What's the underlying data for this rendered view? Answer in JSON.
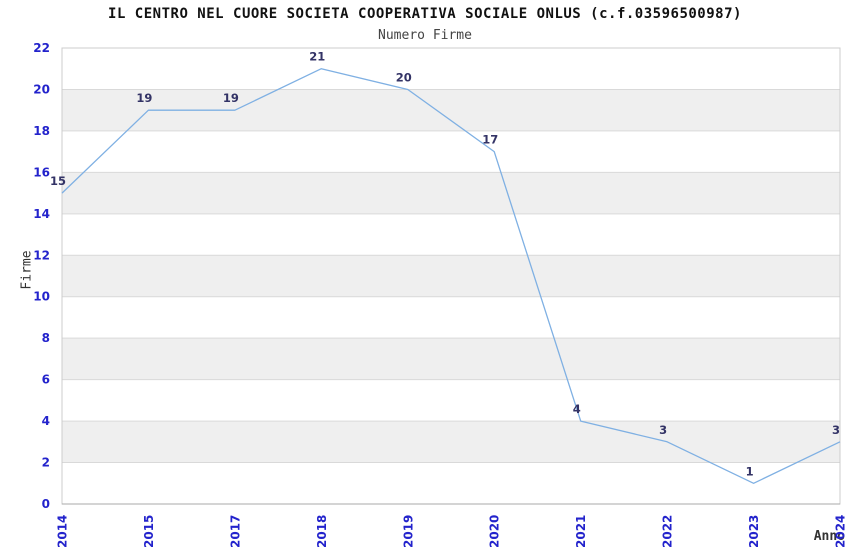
{
  "chart_data": {
    "type": "line",
    "title": "IL CENTRO NEL CUORE SOCIETA COOPERATIVA SOCIALE ONLUS (c.f.03596500987)",
    "subtitle": "Numero Firme",
    "categories": [
      "2014",
      "2015",
      "2017",
      "2018",
      "2019",
      "2020",
      "2021",
      "2022",
      "2023",
      "2024"
    ],
    "values": [
      15,
      19,
      19,
      21,
      20,
      17,
      4,
      3,
      1,
      3
    ],
    "xlabel": "Anno",
    "ylabel": "Firme",
    "ylim": [
      0,
      22
    ],
    "ytick_step": 2,
    "grid": true,
    "legend": "none",
    "colors": {
      "line": "#7fb0e3",
      "band_fill": "#efefef",
      "grid_line": "#d9d9d9",
      "plot_border": "#cccccc",
      "bottom_axis": "#aaaaaa",
      "tick_label": "#2323cc",
      "data_label": "#333366",
      "title": "#111111",
      "subtitle": "#444444",
      "background": "#ffffff"
    }
  }
}
